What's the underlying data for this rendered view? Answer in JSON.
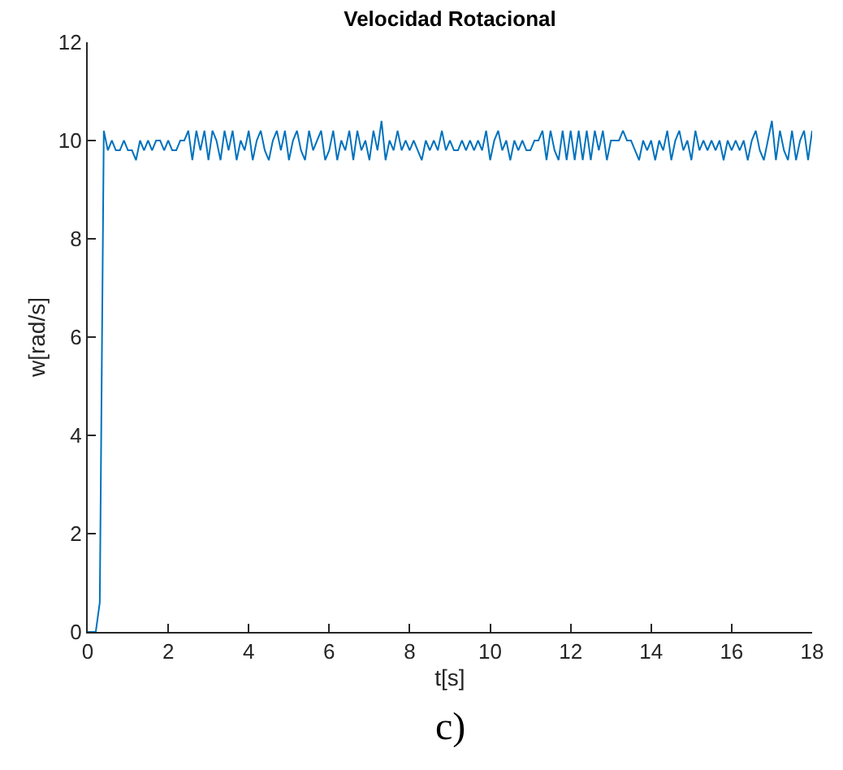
{
  "chart_data": {
    "type": "line",
    "title": "Velocidad Rotacional",
    "xlabel": "t[s]",
    "ylabel": "w[rad/s]",
    "annotations": [
      "c)"
    ],
    "x": [
      0,
      0.1,
      0.2,
      0.3,
      0.4,
      0.5,
      0.6,
      0.7,
      0.8,
      0.9,
      1,
      1.1,
      1.2,
      1.3,
      1.4,
      1.5,
      1.6,
      1.7,
      1.8,
      1.9,
      2,
      2.1,
      2.2,
      2.3,
      2.4,
      2.5,
      2.6,
      2.7,
      2.8,
      2.9,
      3,
      3.1,
      3.2,
      3.3,
      3.4,
      3.5,
      3.6,
      3.7,
      3.8,
      3.9,
      4,
      4.1,
      4.2,
      4.3,
      4.4,
      4.5,
      4.6,
      4.7,
      4.8,
      4.9,
      5,
      5.1,
      5.2,
      5.3,
      5.4,
      5.5,
      5.6,
      5.7,
      5.8,
      5.9,
      6,
      6.1,
      6.2,
      6.3,
      6.4,
      6.5,
      6.6,
      6.7,
      6.8,
      6.9,
      7,
      7.1,
      7.2,
      7.3,
      7.4,
      7.5,
      7.6,
      7.7,
      7.8,
      7.9,
      8,
      8.1,
      8.2,
      8.3,
      8.4,
      8.5,
      8.6,
      8.7,
      8.8,
      8.9,
      9,
      9.1,
      9.2,
      9.3,
      9.4,
      9.5,
      9.6,
      9.7,
      9.8,
      9.9,
      10,
      10.1,
      10.2,
      10.3,
      10.4,
      10.5,
      10.6,
      10.7,
      10.8,
      10.9,
      11,
      11.1,
      11.2,
      11.3,
      11.4,
      11.5,
      11.6,
      11.7,
      11.8,
      11.9,
      12,
      12.1,
      12.2,
      12.3,
      12.4,
      12.5,
      12.6,
      12.7,
      12.8,
      12.9,
      13,
      13.1,
      13.2,
      13.3,
      13.4,
      13.5,
      13.6,
      13.7,
      13.8,
      13.9,
      14,
      14.1,
      14.2,
      14.3,
      14.4,
      14.5,
      14.6,
      14.7,
      14.8,
      14.9,
      15,
      15.1,
      15.2,
      15.3,
      15.4,
      15.5,
      15.6,
      15.7,
      15.8,
      15.9,
      16,
      16.1,
      16.2,
      16.3,
      16.4,
      16.5,
      16.6,
      16.7,
      16.8,
      16.9,
      17,
      17.1,
      17.2,
      17.3,
      17.4,
      17.5,
      17.6,
      17.7,
      17.8,
      17.9,
      18
    ],
    "series": [
      {
        "color": "#0072bd",
        "values": [
          0,
          0,
          0,
          0.6,
          10.2,
          9.8,
          10.0,
          9.8,
          9.8,
          10.0,
          9.8,
          9.8,
          9.6,
          10.0,
          9.8,
          10.0,
          9.8,
          10.0,
          10.0,
          9.8,
          10.0,
          9.8,
          9.8,
          10.0,
          10.0,
          10.2,
          9.6,
          10.2,
          9.8,
          10.2,
          9.6,
          10.2,
          10.0,
          9.6,
          10.2,
          9.8,
          10.2,
          9.6,
          10.0,
          9.8,
          10.2,
          9.6,
          10.0,
          10.2,
          9.8,
          9.6,
          10.0,
          10.2,
          9.8,
          10.2,
          9.6,
          10.0,
          10.2,
          9.8,
          9.6,
          10.2,
          9.8,
          10.0,
          10.2,
          9.6,
          9.8,
          10.2,
          9.6,
          10.0,
          9.8,
          10.2,
          9.6,
          10.2,
          9.8,
          10.0,
          9.6,
          10.2,
          9.8,
          10.4,
          9.6,
          10.0,
          9.8,
          10.2,
          9.8,
          10.0,
          9.8,
          10.0,
          9.8,
          9.6,
          10.0,
          9.8,
          10.0,
          9.8,
          10.2,
          9.8,
          10.0,
          9.8,
          9.8,
          10.0,
          9.8,
          10.0,
          9.8,
          10.0,
          9.8,
          10.2,
          9.6,
          10.0,
          10.2,
          9.8,
          10.0,
          9.6,
          10.0,
          9.8,
          10.0,
          9.8,
          9.8,
          10.0,
          10.0,
          10.2,
          9.6,
          10.2,
          9.8,
          9.6,
          10.2,
          9.6,
          10.2,
          9.6,
          10.2,
          9.6,
          10.2,
          9.6,
          10.2,
          9.8,
          10.2,
          9.6,
          10.0,
          10.0,
          10.0,
          10.2,
          10.0,
          10.0,
          9.8,
          9.6,
          10.0,
          9.8,
          10.0,
          9.6,
          10.0,
          9.8,
          10.2,
          9.6,
          10.0,
          10.2,
          9.8,
          10.0,
          9.6,
          10.2,
          9.8,
          10.0,
          9.8,
          10.0,
          9.8,
          10.0,
          9.6,
          10.0,
          9.8,
          10.0,
          9.8,
          10.0,
          9.6,
          10.0,
          10.2,
          9.8,
          9.6,
          10.0,
          10.4,
          9.6,
          10.2,
          9.8,
          9.6,
          10.2,
          9.6,
          10.0,
          10.2,
          9.6,
          10.2
        ]
      }
    ],
    "xlim": [
      0,
      18
    ],
    "xticks": [
      0,
      2,
      4,
      6,
      8,
      10,
      12,
      14,
      16,
      18
    ],
    "ylim": [
      0,
      12
    ],
    "yticks": [
      0,
      2,
      4,
      6,
      8,
      10,
      12
    ],
    "grid": false,
    "marker": "none",
    "line_style": "solid"
  }
}
